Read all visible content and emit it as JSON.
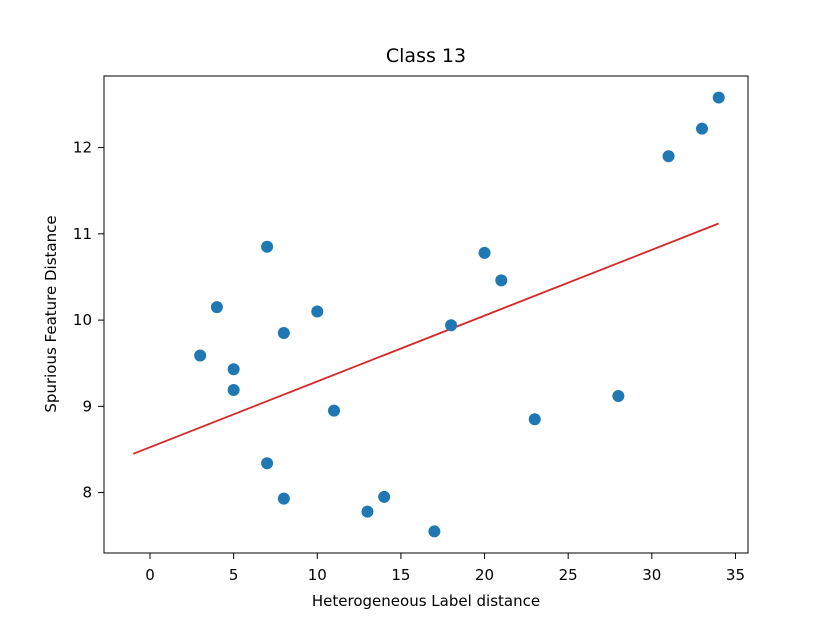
{
  "chart_data": {
    "type": "scatter",
    "title": "Class 13",
    "xlabel": "Heterogeneous Label distance",
    "ylabel": "Spurious Feature Distance",
    "xlim": [
      -2.75,
      35.75
    ],
    "ylim": [
      7.3,
      12.83
    ],
    "xticks": [
      0,
      5,
      10,
      15,
      20,
      25,
      30,
      35
    ],
    "yticks": [
      8,
      9,
      10,
      11,
      12
    ],
    "grid": false,
    "series": [
      {
        "kind": "points",
        "color": "#1f77b4",
        "points": [
          {
            "x": 3,
            "y": 9.59
          },
          {
            "x": 4,
            "y": 10.15
          },
          {
            "x": 5,
            "y": 9.43
          },
          {
            "x": 5,
            "y": 9.19
          },
          {
            "x": 7,
            "y": 10.85
          },
          {
            "x": 7,
            "y": 8.34
          },
          {
            "x": 8,
            "y": 9.85
          },
          {
            "x": 8,
            "y": 7.93
          },
          {
            "x": 10,
            "y": 10.1
          },
          {
            "x": 11,
            "y": 8.95
          },
          {
            "x": 13,
            "y": 7.78
          },
          {
            "x": 14,
            "y": 7.95
          },
          {
            "x": 17,
            "y": 7.55
          },
          {
            "x": 18,
            "y": 9.94
          },
          {
            "x": 20,
            "y": 10.78
          },
          {
            "x": 21,
            "y": 10.46
          },
          {
            "x": 23,
            "y": 8.85
          },
          {
            "x": 28,
            "y": 9.12
          },
          {
            "x": 31,
            "y": 11.9
          },
          {
            "x": 33,
            "y": 12.22
          },
          {
            "x": 34,
            "y": 12.58
          }
        ]
      },
      {
        "kind": "fit-line",
        "color": "#d62728",
        "points": [
          {
            "x": -1,
            "y": 8.45
          },
          {
            "x": 34,
            "y": 11.12
          }
        ]
      }
    ]
  }
}
